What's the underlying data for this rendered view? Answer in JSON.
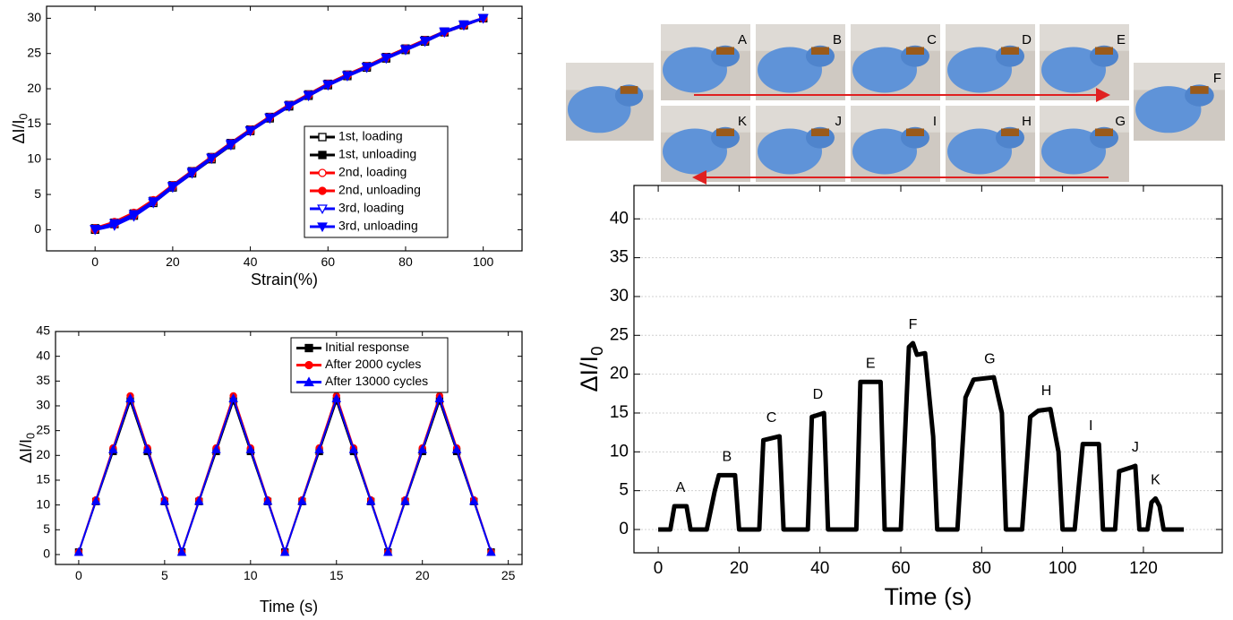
{
  "chart_data": [
    {
      "type": "line",
      "xlabel": "Strain(%)",
      "ylabel": "ΔI/I",
      "ylabel_sub": "0",
      "xlim": [
        -12.5,
        110
      ],
      "ylim": [
        -3,
        31.7
      ],
      "xticks": [
        0,
        20,
        40,
        60,
        80,
        100
      ],
      "yticks": [
        0,
        5,
        10,
        15,
        20,
        25,
        30
      ],
      "legend": "lower right",
      "x": [
        0,
        5,
        10,
        15,
        20,
        25,
        30,
        35,
        40,
        45,
        50,
        55,
        60,
        65,
        70,
        75,
        80,
        85,
        90,
        95,
        100
      ],
      "series": [
        {
          "name": "1st, loading",
          "color": "#000000",
          "marker": "square",
          "filled": false,
          "values": [
            0,
            0.8,
            2,
            3.8,
            6,
            8,
            10,
            12,
            14,
            15.8,
            17.5,
            19,
            20.5,
            21.8,
            23,
            24.3,
            25.5,
            26.7,
            28,
            29,
            30
          ]
        },
        {
          "name": "1st, unloading",
          "color": "#000000",
          "marker": "square",
          "filled": true,
          "values": [
            0.2,
            1,
            2.3,
            4.1,
            6.3,
            8.3,
            10.3,
            12.3,
            14.2,
            16,
            17.7,
            19.2,
            20.7,
            22,
            23.2,
            24.5,
            25.7,
            26.9,
            28.1,
            29.1,
            30
          ]
        },
        {
          "name": "2nd, loading",
          "color": "#ff0000",
          "marker": "circle",
          "filled": false,
          "values": [
            0,
            0.7,
            2,
            3.9,
            6.1,
            8.1,
            10.1,
            12.1,
            14,
            15.9,
            17.6,
            19.1,
            20.6,
            21.9,
            23.1,
            24.4,
            25.6,
            26.8,
            28,
            29,
            30
          ]
        },
        {
          "name": "2nd, unloading",
          "color": "#ff0000",
          "marker": "circle",
          "filled": true,
          "values": [
            0.2,
            1.1,
            2.4,
            4.2,
            6.3,
            8.3,
            10.3,
            12.3,
            14.2,
            16,
            17.7,
            19.2,
            20.7,
            22,
            23.2,
            24.5,
            25.7,
            26.9,
            28.1,
            29.1,
            30
          ]
        },
        {
          "name": "3rd, loading",
          "color": "#0000ff",
          "marker": "triangle-down",
          "filled": false,
          "values": [
            0,
            0.6,
            1.9,
            3.8,
            6,
            8,
            10.1,
            12,
            14,
            15.8,
            17.5,
            19,
            20.5,
            21.8,
            23,
            24.3,
            25.5,
            26.7,
            28,
            29,
            30
          ]
        },
        {
          "name": "3rd, unloading",
          "color": "#0000ff",
          "marker": "triangle-down",
          "filled": true,
          "values": [
            0.1,
            0.9,
            2.2,
            4,
            6.2,
            8.2,
            10.2,
            12.2,
            14.1,
            15.9,
            17.6,
            19.1,
            20.6,
            21.9,
            23.1,
            24.4,
            25.6,
            26.8,
            28.1,
            29.1,
            30
          ]
        }
      ]
    },
    {
      "type": "line",
      "xlabel": "Time (s)",
      "ylabel": "ΔI/I",
      "ylabel_sub": "0",
      "xlim": [
        -1.35,
        25.8
      ],
      "ylim": [
        -2,
        45
      ],
      "xticks": [
        0,
        5,
        10,
        15,
        20,
        25
      ],
      "yticks": [
        0,
        5,
        10,
        15,
        20,
        25,
        30,
        35,
        40,
        45
      ],
      "legend": "upper right",
      "x": [
        0,
        1,
        2,
        3,
        4,
        5,
        6,
        7,
        8,
        9,
        10,
        11,
        12,
        13,
        14,
        15,
        16,
        17,
        18,
        19,
        20,
        21,
        22,
        23,
        24
      ],
      "series": [
        {
          "name": "Initial response",
          "color": "#000000",
          "marker": "square",
          "filled": true,
          "values": [
            0.5,
            10.7,
            20.8,
            31,
            20.8,
            10.7,
            0.5,
            10.7,
            20.8,
            31,
            20.8,
            10.7,
            0.5,
            10.7,
            20.8,
            31,
            20.8,
            10.7,
            0.5,
            10.7,
            20.8,
            31,
            20.8,
            10.7,
            0.5
          ]
        },
        {
          "name": "After 2000 cycles",
          "color": "#ff0000",
          "marker": "circle",
          "filled": true,
          "values": [
            0.5,
            11,
            21.5,
            32,
            21.5,
            11,
            0.5,
            11,
            21.5,
            32,
            21.5,
            11,
            0.5,
            11,
            21.5,
            32,
            21.5,
            11,
            0.5,
            11,
            21.5,
            32,
            21.5,
            11,
            0.5
          ]
        },
        {
          "name": "After 13000 cycles",
          "color": "#0000ff",
          "marker": "triangle-up",
          "filled": true,
          "values": [
            0.5,
            10.8,
            21.2,
            31.5,
            21.2,
            10.8,
            0.5,
            10.8,
            21.2,
            31.5,
            21.2,
            10.8,
            0.5,
            10.8,
            21.2,
            31.5,
            21.2,
            10.8,
            0.5,
            10.8,
            21.2,
            31.5,
            21.2,
            10.8,
            0.5
          ]
        }
      ]
    },
    {
      "type": "line",
      "xlabel": "Time (s)",
      "ylabel": "ΔI/I",
      "ylabel_sub": "0",
      "xlim": [
        -6,
        139.5
      ],
      "ylim": [
        -3,
        44.3
      ],
      "xticks": [
        0,
        20,
        40,
        60,
        80,
        100,
        120
      ],
      "yticks": [
        0,
        5,
        10,
        15,
        20,
        25,
        30,
        35,
        40
      ],
      "grid": true,
      "color": "#000000",
      "x": [
        0,
        3,
        4,
        7,
        8,
        12,
        14,
        15,
        19,
        20,
        25,
        26,
        30,
        31,
        37,
        38,
        41,
        42,
        49,
        50,
        55,
        56,
        60,
        62,
        63,
        64,
        66,
        68,
        69,
        74,
        76,
        78,
        83,
        85,
        86,
        90,
        92,
        94,
        97,
        99,
        100,
        103,
        105,
        109,
        110,
        113,
        114,
        117,
        118,
        119,
        121,
        122,
        123,
        124,
        125,
        130
      ],
      "values": [
        0,
        0,
        3,
        3,
        0,
        0,
        5,
        7,
        7,
        0,
        0,
        11.5,
        12,
        0,
        0,
        14.5,
        15,
        0,
        0,
        19,
        19,
        0,
        0,
        23.5,
        24,
        22.5,
        22.7,
        12,
        0,
        0,
        17,
        19.3,
        19.6,
        15,
        0,
        0,
        14.5,
        15.3,
        15.5,
        10,
        0,
        0,
        11,
        11,
        0,
        0,
        7.5,
        8,
        8.2,
        0,
        0,
        3.5,
        4,
        3,
        0,
        0
      ],
      "annotations": [
        {
          "text": "A",
          "x": 5.5,
          "y": 3
        },
        {
          "text": "B",
          "x": 17,
          "y": 7
        },
        {
          "text": "C",
          "x": 28,
          "y": 12
        },
        {
          "text": "D",
          "x": 39.5,
          "y": 15
        },
        {
          "text": "E",
          "x": 52.5,
          "y": 19
        },
        {
          "text": "F",
          "x": 63,
          "y": 24
        },
        {
          "text": "G",
          "x": 82,
          "y": 19.6
        },
        {
          "text": "H",
          "x": 96,
          "y": 15.5
        },
        {
          "text": "I",
          "x": 107,
          "y": 11
        },
        {
          "text": "J",
          "x": 118,
          "y": 8.2
        },
        {
          "text": "K",
          "x": 123,
          "y": 4
        }
      ]
    }
  ],
  "photo_panel": {
    "top_labels": [
      "A",
      "B",
      "C",
      "D",
      "E"
    ],
    "bottom_labels": [
      "K",
      "J",
      "I",
      "H",
      "G"
    ],
    "end_label": "F"
  }
}
